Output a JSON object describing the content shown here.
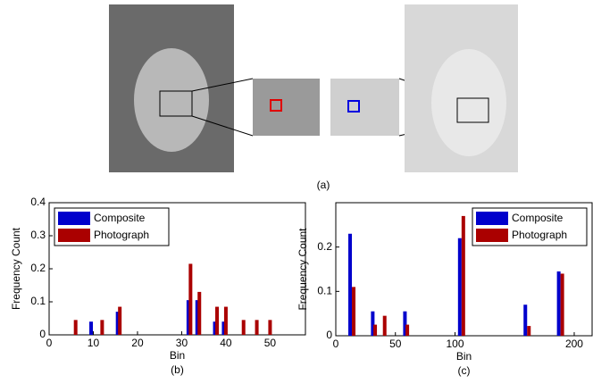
{
  "image_panel": {
    "label": "(a)"
  },
  "chart_data": [
    {
      "type": "bar",
      "caption": "(b)",
      "x_label": "Bin",
      "y_label": "Frequency Count",
      "xlim": [
        0,
        58
      ],
      "xticks": [
        0,
        10,
        20,
        30,
        40,
        50
      ],
      "ylim": [
        0,
        0.4
      ],
      "yticks": [
        0,
        0.1,
        0.2,
        0.3,
        0.4
      ],
      "legend": "upper-left",
      "series": [
        {
          "name": "Composite",
          "color": "#0000cc",
          "x": [
            9.5,
            15.5,
            31.5,
            33.5,
            37.5,
            39.5
          ],
          "values": [
            0.04,
            0.07,
            0.105,
            0.105,
            0.04,
            0.04
          ]
        },
        {
          "name": "Photograph",
          "color": "#aa0000",
          "x": [
            6,
            12,
            16,
            32,
            34,
            38,
            40,
            44,
            47,
            50
          ],
          "values": [
            0.045,
            0.045,
            0.085,
            0.215,
            0.13,
            0.085,
            0.085,
            0.045,
            0.045,
            0.045
          ]
        }
      ]
    },
    {
      "type": "bar",
      "caption": "(c)",
      "x_label": "Bin",
      "y_label": "Frequency Count",
      "xlim": [
        0,
        215
      ],
      "xticks": [
        0,
        50,
        100,
        200
      ],
      "ylim": [
        0,
        0.3
      ],
      "yticks": [
        0,
        0.1,
        0.2
      ],
      "legend": "upper-right",
      "series": [
        {
          "name": "Composite",
          "color": "#0000cc",
          "x": [
            12,
            31,
            58,
            104,
            159,
            187
          ],
          "values": [
            0.23,
            0.055,
            0.055,
            0.22,
            0.07,
            0.145
          ]
        },
        {
          "name": "Photograph",
          "color": "#aa0000",
          "x": [
            15,
            33,
            41,
            60,
            107,
            162,
            190
          ],
          "values": [
            0.11,
            0.025,
            0.045,
            0.025,
            0.27,
            0.022,
            0.14
          ]
        }
      ]
    }
  ]
}
